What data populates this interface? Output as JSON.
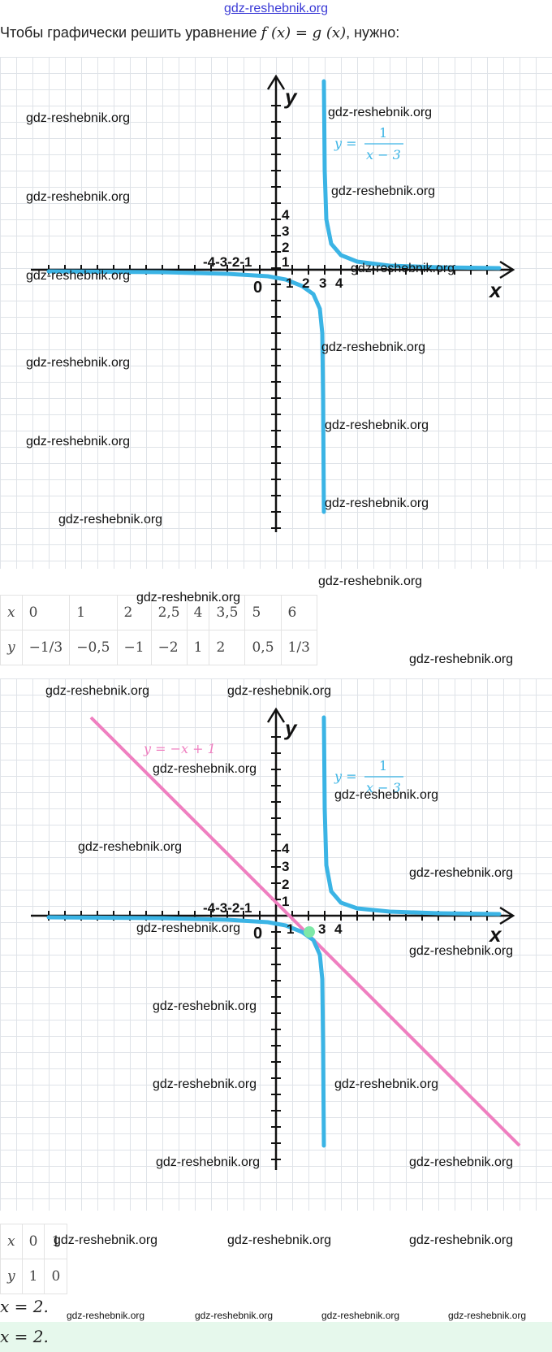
{
  "site_link": "gdz-reshebnik.org",
  "intro": {
    "text": "Чтобы графически решить уравнение",
    "equation": "f (x) = g (x)",
    "suffix": ", нужно:"
  },
  "graph1": {
    "y_axis_label": "y",
    "x_axis_label": "x",
    "origin_label": "0",
    "neg_ticks_label": "-4-3-2-1",
    "y_tick_labels": [
      "4",
      "3",
      "2",
      "1"
    ],
    "x_tick_labels": [
      "1",
      "2",
      "3",
      "4"
    ],
    "hyperbola_label": "y = 1 / (x − 3)",
    "hyperbola_color": "#3bb4e5"
  },
  "table1": {
    "x_header": "x",
    "y_header": "y",
    "x_values": [
      "0",
      "1",
      "2",
      "2,5",
      "4",
      "3,5",
      "5",
      "6"
    ],
    "y_values": [
      "−1/3",
      "−0,5",
      "−1",
      "−2",
      "1",
      "2",
      "0,5",
      "1/3"
    ]
  },
  "graph2": {
    "y_axis_label": "y",
    "x_axis_label": "x",
    "origin_label": "0",
    "neg_ticks_label": "-4-3-2-1",
    "y_tick_labels": [
      "4",
      "3",
      "2",
      "1"
    ],
    "x_tick_labels": [
      "1",
      "3",
      "4"
    ],
    "hyperbola_label": "y = 1 / (x − 3)",
    "line_label": "y = −x + 1",
    "hyperbola_color": "#3bb4e5",
    "line_color": "#ef7fc0",
    "intersection_color": "#7ee8a8"
  },
  "table2": {
    "x_header": "x",
    "y_header": "y",
    "x_values": [
      "0",
      "1"
    ],
    "y_values": [
      "1",
      "0"
    ]
  },
  "answer1": "x = 2.",
  "answer2": "x = 2.",
  "watermark": "gdz-reshebnik.org"
}
